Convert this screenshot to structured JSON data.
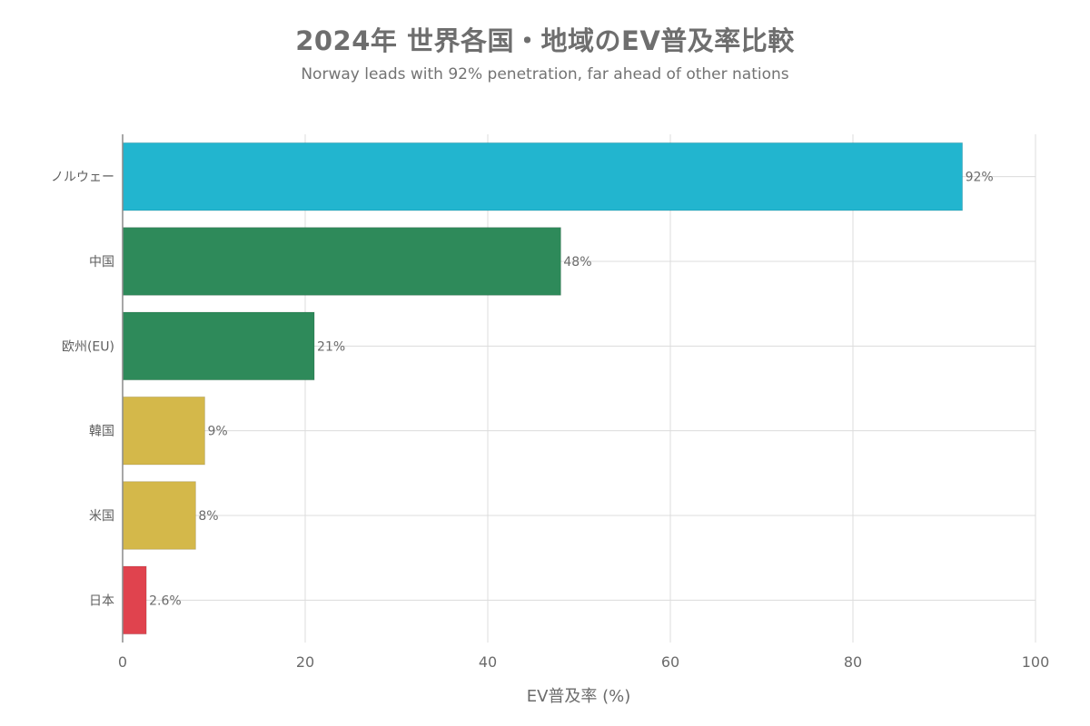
{
  "chart_data": {
    "type": "bar",
    "orientation": "horizontal",
    "title": "2024年 世界各国・地域のEV普及率比較",
    "subtitle": "Norway leads with 92% penetration, far ahead of other nations",
    "xlabel": "EV普及率 (%)",
    "ylabel": "",
    "xlim": [
      0,
      100
    ],
    "xticks": [
      0,
      20,
      40,
      60,
      80,
      100
    ],
    "grid": true,
    "categories": [
      "ノルウェー",
      "中国",
      "欧州(EU)",
      "韓国",
      "米国",
      "日本"
    ],
    "values": [
      92,
      48,
      21,
      9,
      8,
      2.6
    ],
    "data_labels": [
      "92%",
      "48%",
      "21%",
      "9%",
      "8%",
      "2.6%"
    ],
    "colors": [
      "#22b5cf",
      "#2e8a5a",
      "#2e8a5a",
      "#d4b84a",
      "#d4b84a",
      "#e0434e"
    ]
  }
}
